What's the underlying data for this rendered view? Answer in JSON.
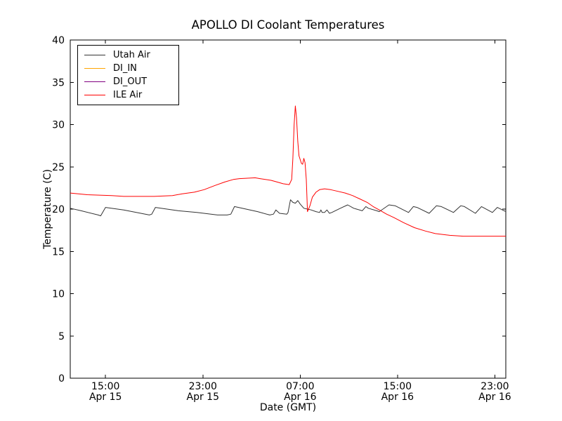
{
  "page": {
    "background": "#ffffff"
  },
  "chart_data": {
    "type": "line",
    "title": "APOLLO DI Coolant Temperatures",
    "xlabel": "Date (GMT)",
    "ylabel": "Temperature (C)",
    "x_unit": "hours since Apr 15 00:00 GMT",
    "xlim_hours": [
      12.1,
      47.9
    ],
    "ylim": [
      0,
      40
    ],
    "yticks": [
      0,
      5,
      10,
      15,
      20,
      25,
      30,
      35,
      40
    ],
    "xticks": [
      {
        "hour": 15,
        "time": "15:00",
        "date": "Apr 15"
      },
      {
        "hour": 23,
        "time": "23:00",
        "date": "Apr 15"
      },
      {
        "hour": 31,
        "time": "07:00",
        "date": "Apr 16"
      },
      {
        "hour": 39,
        "time": "15:00",
        "date": "Apr 16"
      },
      {
        "hour": 47,
        "time": "23:00",
        "date": "Apr 16"
      }
    ],
    "grid": false,
    "legend": {
      "position": "upper left",
      "border_color": "#000000",
      "background": "#ffffff"
    },
    "series": [
      {
        "name": "Utah Air",
        "color": "#333333",
        "points": [
          [
            12.1,
            20.1
          ],
          [
            13.0,
            19.8
          ],
          [
            14.4,
            19.3
          ],
          [
            14.6,
            19.2
          ],
          [
            15.0,
            20.2
          ],
          [
            16.5,
            19.9
          ],
          [
            18.6,
            19.3
          ],
          [
            18.8,
            19.4
          ],
          [
            19.1,
            20.2
          ],
          [
            21.0,
            19.8
          ],
          [
            22.5,
            19.6
          ],
          [
            24.2,
            19.3
          ],
          [
            25.0,
            19.3
          ],
          [
            25.3,
            19.4
          ],
          [
            25.6,
            20.3
          ],
          [
            27.5,
            19.7
          ],
          [
            28.5,
            19.3
          ],
          [
            28.8,
            19.4
          ],
          [
            29.0,
            19.9
          ],
          [
            29.3,
            19.5
          ],
          [
            29.9,
            19.4
          ],
          [
            30.0,
            19.6
          ],
          [
            30.2,
            21.1
          ],
          [
            30.4,
            20.8
          ],
          [
            30.6,
            20.7
          ],
          [
            30.8,
            21.0
          ],
          [
            31.0,
            20.6
          ],
          [
            31.3,
            20.1
          ],
          [
            31.6,
            20.0
          ],
          [
            31.9,
            19.9
          ],
          [
            32.3,
            19.7
          ],
          [
            32.6,
            19.6
          ],
          [
            32.7,
            19.9
          ],
          [
            32.8,
            19.6
          ],
          [
            33.0,
            19.6
          ],
          [
            33.2,
            19.9
          ],
          [
            33.4,
            19.5
          ],
          [
            33.6,
            19.6
          ],
          [
            34.3,
            20.1
          ],
          [
            34.9,
            20.5
          ],
          [
            35.4,
            20.1
          ],
          [
            36.1,
            19.8
          ],
          [
            36.4,
            20.3
          ],
          [
            36.6,
            20.1
          ],
          [
            37.3,
            19.8
          ],
          [
            37.5,
            19.7
          ],
          [
            38.3,
            20.5
          ],
          [
            38.8,
            20.4
          ],
          [
            39.9,
            19.6
          ],
          [
            40.3,
            20.3
          ],
          [
            40.6,
            20.2
          ],
          [
            41.6,
            19.5
          ],
          [
            42.2,
            20.4
          ],
          [
            42.6,
            20.3
          ],
          [
            43.6,
            19.6
          ],
          [
            44.2,
            20.4
          ],
          [
            44.5,
            20.3
          ],
          [
            45.4,
            19.5
          ],
          [
            45.9,
            20.3
          ],
          [
            46.8,
            19.6
          ],
          [
            47.2,
            20.2
          ],
          [
            47.9,
            19.7
          ]
        ]
      },
      {
        "name": "DI_IN",
        "color": "#ffa500",
        "points": []
      },
      {
        "name": "DI_OUT",
        "color": "#800080",
        "points": []
      },
      {
        "name": "ILE Air",
        "color": "#ff0000",
        "points": [
          [
            12.1,
            21.9
          ],
          [
            13.5,
            21.7
          ],
          [
            15.5,
            21.6
          ],
          [
            16.5,
            21.5
          ],
          [
            17.9,
            21.5
          ],
          [
            19.0,
            21.5
          ],
          [
            20.5,
            21.6
          ],
          [
            21.3,
            21.8
          ],
          [
            22.3,
            22.0
          ],
          [
            23.1,
            22.3
          ],
          [
            24.0,
            22.8
          ],
          [
            24.8,
            23.2
          ],
          [
            25.5,
            23.5
          ],
          [
            26.0,
            23.6
          ],
          [
            27.3,
            23.7
          ],
          [
            27.7,
            23.6
          ],
          [
            28.6,
            23.4
          ],
          [
            29.1,
            23.2
          ],
          [
            29.6,
            23.0
          ],
          [
            30.1,
            22.9
          ],
          [
            30.3,
            23.5
          ],
          [
            30.4,
            26.0
          ],
          [
            30.5,
            30.0
          ],
          [
            30.6,
            32.2
          ],
          [
            30.7,
            30.8
          ],
          [
            30.8,
            28.0
          ],
          [
            30.9,
            26.3
          ],
          [
            31.1,
            25.4
          ],
          [
            31.2,
            25.3
          ],
          [
            31.3,
            26.0
          ],
          [
            31.4,
            25.5
          ],
          [
            31.5,
            23.5
          ],
          [
            31.6,
            19.7
          ],
          [
            31.8,
            20.4
          ],
          [
            32.0,
            21.4
          ],
          [
            32.3,
            22.0
          ],
          [
            32.6,
            22.3
          ],
          [
            33.0,
            22.4
          ],
          [
            33.5,
            22.3
          ],
          [
            34.1,
            22.1
          ],
          [
            34.7,
            21.9
          ],
          [
            35.3,
            21.6
          ],
          [
            35.9,
            21.2
          ],
          [
            36.5,
            20.8
          ],
          [
            37.0,
            20.3
          ],
          [
            37.5,
            19.9
          ],
          [
            38.1,
            19.4
          ],
          [
            38.7,
            19.0
          ],
          [
            39.5,
            18.4
          ],
          [
            40.4,
            17.8
          ],
          [
            41.3,
            17.4
          ],
          [
            42.1,
            17.1
          ],
          [
            43.3,
            16.9
          ],
          [
            44.4,
            16.8
          ],
          [
            45.5,
            16.8
          ],
          [
            46.7,
            16.8
          ],
          [
            47.9,
            16.8
          ]
        ]
      }
    ]
  }
}
